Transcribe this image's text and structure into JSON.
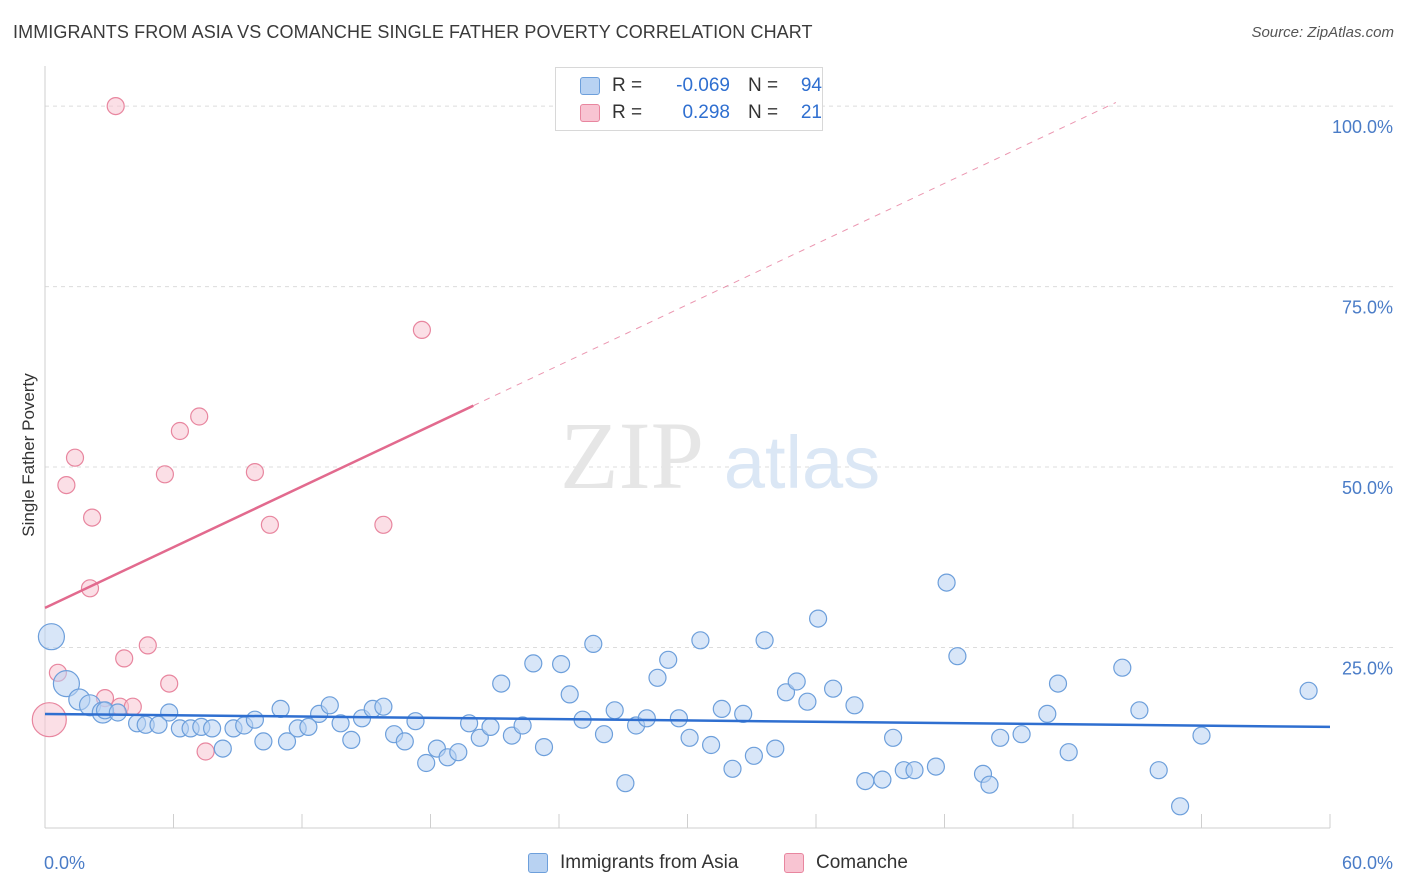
{
  "title": "IMMIGRANTS FROM ASIA VS COMANCHE SINGLE FATHER POVERTY CORRELATION CHART",
  "source": "Source: ZipAtlas.com",
  "watermark": {
    "zip": "ZIP",
    "atlas": "atlas"
  },
  "legend_top": [
    {
      "r_label": "R =",
      "r_value": "-0.069",
      "n_label": "N =",
      "n_value": "94"
    },
    {
      "r_label": "R =",
      "r_value": "0.298",
      "n_label": "N =",
      "n_value": "21"
    }
  ],
  "colors": {
    "asia_fill": "#b8d2f2",
    "asia_stroke": "#6d9fdb",
    "asia_line": "#2f6fd0",
    "comanche_fill": "#f8c4d2",
    "comanche_stroke": "#e8869f",
    "comanche_line": "#e26a8e",
    "tick_text": "#4a7cc7",
    "grid": "#dcdcdc"
  },
  "chart_data": {
    "type": "scatter",
    "title": "IMMIGRANTS FROM ASIA VS COMANCHE SINGLE FATHER POVERTY CORRELATION CHART",
    "xlabel": "",
    "ylabel": "Single Father Poverty",
    "xlim": [
      0,
      60
    ],
    "ylim": [
      0,
      105
    ],
    "x_tick_labels": [
      "0.0%",
      "60.0%"
    ],
    "y_ticks": [
      25,
      50,
      75,
      100
    ],
    "y_tick_labels": [
      "25.0%",
      "50.0%",
      "75.0%",
      "100.0%"
    ],
    "grid": true,
    "legend_position": "bottom",
    "series": [
      {
        "name": "Immigrants from Asia",
        "trend": {
          "x": [
            0,
            60
          ],
          "y": [
            15.8,
            14.0
          ],
          "dashed_extension": false
        },
        "points": [
          [
            0.3,
            26.5,
            3
          ],
          [
            1.0,
            20.0,
            3
          ],
          [
            1.6,
            17.8,
            2
          ],
          [
            2.1,
            17.0,
            2
          ],
          [
            2.7,
            16.0,
            2
          ],
          [
            2.8,
            16.3,
            1
          ],
          [
            3.4,
            16.0,
            1
          ],
          [
            4.3,
            14.5,
            1
          ],
          [
            4.7,
            14.3,
            1
          ],
          [
            5.3,
            14.3,
            1
          ],
          [
            5.8,
            16.0,
            1
          ],
          [
            6.3,
            13.8,
            1
          ],
          [
            6.8,
            13.8,
            1
          ],
          [
            7.3,
            14.0,
            1
          ],
          [
            7.8,
            13.8,
            1
          ],
          [
            8.3,
            11.0,
            1
          ],
          [
            8.8,
            13.8,
            1
          ],
          [
            9.3,
            14.2,
            1
          ],
          [
            9.8,
            15.0,
            1
          ],
          [
            10.2,
            12.0,
            1
          ],
          [
            11.0,
            16.5,
            1
          ],
          [
            11.3,
            12.0,
            1
          ],
          [
            11.8,
            13.8,
            1
          ],
          [
            12.3,
            14.0,
            1
          ],
          [
            12.8,
            15.8,
            1
          ],
          [
            13.3,
            17.0,
            1
          ],
          [
            13.8,
            14.5,
            1
          ],
          [
            14.3,
            12.2,
            1
          ],
          [
            14.8,
            15.2,
            1
          ],
          [
            15.3,
            16.5,
            1
          ],
          [
            15.8,
            16.8,
            1
          ],
          [
            16.3,
            13.0,
            1
          ],
          [
            16.8,
            12.0,
            1
          ],
          [
            17.3,
            14.8,
            1
          ],
          [
            17.8,
            9.0,
            1
          ],
          [
            18.3,
            11.0,
            1
          ],
          [
            18.8,
            9.8,
            1
          ],
          [
            19.3,
            10.5,
            1
          ],
          [
            19.8,
            14.5,
            1
          ],
          [
            20.3,
            12.5,
            1
          ],
          [
            20.8,
            14.0,
            1
          ],
          [
            21.3,
            20.0,
            1
          ],
          [
            21.8,
            12.8,
            1
          ],
          [
            22.3,
            14.2,
            1
          ],
          [
            22.8,
            22.8,
            1
          ],
          [
            23.3,
            11.2,
            1
          ],
          [
            24.1,
            22.7,
            1
          ],
          [
            24.5,
            18.5,
            1
          ],
          [
            25.1,
            15.0,
            1
          ],
          [
            25.6,
            25.5,
            1
          ],
          [
            26.1,
            13.0,
            1
          ],
          [
            26.6,
            16.3,
            1
          ],
          [
            27.1,
            6.2,
            1
          ],
          [
            27.6,
            14.2,
            1
          ],
          [
            28.1,
            15.2,
            1
          ],
          [
            28.6,
            20.8,
            1
          ],
          [
            29.1,
            23.3,
            1
          ],
          [
            29.6,
            15.2,
            1
          ],
          [
            30.1,
            12.5,
            1
          ],
          [
            30.6,
            26.0,
            1
          ],
          [
            31.1,
            11.5,
            1
          ],
          [
            31.6,
            16.5,
            1
          ],
          [
            32.1,
            8.2,
            1
          ],
          [
            32.6,
            15.8,
            1
          ],
          [
            33.1,
            10.0,
            1
          ],
          [
            33.6,
            26.0,
            1
          ],
          [
            34.1,
            11.0,
            1
          ],
          [
            34.6,
            18.8,
            1
          ],
          [
            35.1,
            20.3,
            1
          ],
          [
            35.6,
            17.5,
            1
          ],
          [
            36.1,
            29.0,
            1
          ],
          [
            36.8,
            19.3,
            1
          ],
          [
            37.8,
            17.0,
            1
          ],
          [
            38.3,
            6.5,
            1
          ],
          [
            39.1,
            6.7,
            1
          ],
          [
            39.6,
            12.5,
            1
          ],
          [
            40.1,
            8.0,
            1
          ],
          [
            40.6,
            8.0,
            1
          ],
          [
            41.6,
            8.5,
            1
          ],
          [
            42.1,
            34.0,
            1
          ],
          [
            42.6,
            23.8,
            1
          ],
          [
            43.8,
            7.5,
            1
          ],
          [
            44.1,
            6.0,
            1
          ],
          [
            44.6,
            12.5,
            1
          ],
          [
            45.6,
            13.0,
            1
          ],
          [
            46.8,
            15.8,
            1
          ],
          [
            47.3,
            20.0,
            1
          ],
          [
            47.8,
            10.5,
            1
          ],
          [
            50.3,
            22.2,
            1
          ],
          [
            51.1,
            16.3,
            1
          ],
          [
            52.0,
            8.0,
            1
          ],
          [
            53.0,
            3.0,
            1
          ],
          [
            54.0,
            12.8,
            1
          ],
          [
            59.0,
            19.0,
            1
          ]
        ]
      },
      {
        "name": "Comanche",
        "trend": {
          "x": [
            0,
            20
          ],
          "y": [
            30.5,
            58.5
          ],
          "dashed_extension": true,
          "dashed_to": {
            "x": 50,
            "y": 100.5
          }
        },
        "points": [
          [
            0.2,
            15.0,
            4
          ],
          [
            0.6,
            21.5,
            1
          ],
          [
            1.0,
            47.5,
            1
          ],
          [
            1.4,
            51.3,
            1
          ],
          [
            2.1,
            33.2,
            1
          ],
          [
            2.2,
            43.0,
            1
          ],
          [
            2.8,
            18.0,
            1
          ],
          [
            3.5,
            16.8,
            1
          ],
          [
            3.7,
            23.5,
            1
          ],
          [
            4.1,
            16.8,
            1
          ],
          [
            4.8,
            25.3,
            1
          ],
          [
            5.6,
            49.0,
            1
          ],
          [
            5.8,
            20.0,
            1
          ],
          [
            6.3,
            55.0,
            1
          ],
          [
            7.2,
            57.0,
            1
          ],
          [
            7.5,
            10.6,
            1
          ],
          [
            9.8,
            49.3,
            1
          ],
          [
            10.5,
            42.0,
            1
          ],
          [
            15.8,
            42.0,
            1
          ],
          [
            17.6,
            69.0,
            1
          ],
          [
            3.3,
            100.0,
            1
          ]
        ]
      }
    ]
  },
  "legend_bottom": [
    "Immigrants from Asia",
    "Comanche"
  ]
}
